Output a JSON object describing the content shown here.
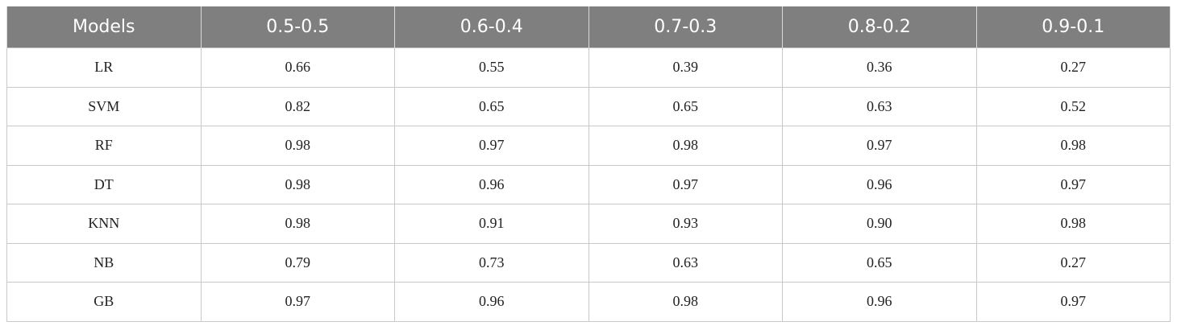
{
  "table": {
    "header": [
      "Models",
      "0.5-0.5",
      "0.6-0.4",
      "0.7-0.3",
      "0.8-0.2",
      "0.9-0.1"
    ],
    "rows": [
      [
        "LR",
        "0.66",
        "0.55",
        "0.39",
        "0.36",
        "0.27"
      ],
      [
        "SVM",
        "0.82",
        "0.65",
        "0.65",
        "0.63",
        "0.52"
      ],
      [
        "RF",
        "0.98",
        "0.97",
        "0.98",
        "0.97",
        "0.98"
      ],
      [
        "DT",
        "0.98",
        "0.96",
        "0.97",
        "0.96",
        "0.97"
      ],
      [
        "KNN",
        "0.98",
        "0.91",
        "0.93",
        "0.90",
        "0.98"
      ],
      [
        "NB",
        "0.79",
        "0.73",
        "0.63",
        "0.65",
        "0.27"
      ],
      [
        "GB",
        "0.97",
        "0.96",
        "0.98",
        "0.96",
        "0.97"
      ]
    ]
  }
}
